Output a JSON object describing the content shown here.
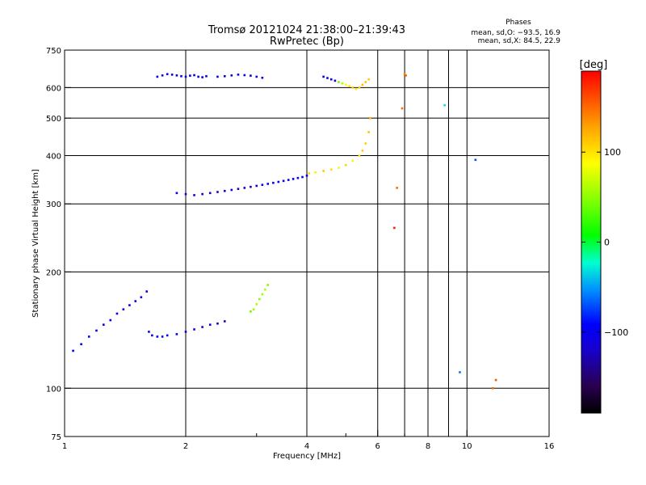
{
  "header": {
    "title_line1": "Tromsø 20121024 21:38:00–21:39:43",
    "title_line2": "RwPretec (Bp)"
  },
  "stats": {
    "heading": "Phases",
    "line_o": "mean, sd,O: −93.5, 16.9",
    "line_x": "mean, sd,X: 84.5, 22.9"
  },
  "colorbar": {
    "label": "[deg]",
    "range": [
      -190,
      190
    ],
    "ticks": [
      100,
      0,
      -100
    ],
    "tick_labels": [
      "100",
      "0",
      "−100"
    ]
  },
  "chart_data": {
    "type": "scatter",
    "title": "Tromsø 20121024 21:38:00–21:39:43",
    "subtitle": "RwPretec (Bp)",
    "xlabel": "Frequency [MHz]",
    "ylabel": "Stationary phase Virtual Height [km]",
    "xscale": "log",
    "yscale": "log",
    "xlim": [
      1,
      16
    ],
    "ylim": [
      75,
      750
    ],
    "x_ticks": [
      1,
      2,
      4,
      6,
      8,
      10,
      16
    ],
    "x_tick_labels": [
      "1",
      "2",
      "4",
      "6",
      "8",
      "10",
      "16"
    ],
    "x_minor_ticks": [
      3,
      5,
      7,
      9
    ],
    "x_grid": [
      2,
      4,
      6,
      7,
      8,
      9,
      10
    ],
    "y_ticks": [
      75,
      100,
      200,
      300,
      400,
      500,
      600,
      750
    ],
    "y_tick_labels": [
      "75",
      "100",
      "200",
      "300",
      "400",
      "500",
      "600",
      "750"
    ],
    "y_grid": [
      100,
      200,
      300,
      400,
      500,
      600
    ],
    "color_encoding": "phase [deg]",
    "series": [
      {
        "freq": [
          1.62,
          1.65,
          1.7,
          1.75,
          1.8,
          1.9,
          2.0,
          2.1,
          2.2,
          2.3,
          2.4,
          2.5
        ],
        "height": [
          140,
          137,
          136,
          136,
          137,
          138,
          140,
          142,
          144,
          146,
          147,
          149
        ],
        "phase": [
          -100,
          -105,
          -95,
          -110,
          -100,
          -98,
          -105,
          -112,
          -115,
          -110,
          -105,
          -108
        ]
      },
      {
        "freq": [
          1.05,
          1.1,
          1.15,
          1.2,
          1.25,
          1.3,
          1.35,
          1.4,
          1.45,
          1.5,
          1.55,
          1.6
        ],
        "height": [
          125,
          130,
          136,
          141,
          146,
          150,
          156,
          160,
          164,
          168,
          172,
          178
        ],
        "phase": [
          -95,
          -100,
          -92,
          -98,
          -105,
          -95,
          -100,
          -108,
          -96,
          -102,
          -104,
          -100
        ]
      },
      {
        "freq": [
          1.9,
          2.0,
          2.1,
          2.2,
          2.3,
          2.4,
          2.5,
          2.6,
          2.7,
          2.8,
          2.9,
          3.0,
          3.1,
          3.2,
          3.3,
          3.4,
          3.5,
          3.6,
          3.7,
          3.8,
          3.9,
          4.0
        ],
        "height": [
          320,
          318,
          316,
          318,
          320,
          322,
          324,
          326,
          328,
          330,
          332,
          334,
          336,
          338,
          340,
          342,
          344,
          346,
          348,
          350,
          352,
          355
        ],
        "phase": [
          -95,
          -105,
          -115,
          -120,
          -125,
          -118,
          -110,
          -112,
          -120,
          -115,
          -118,
          -110,
          -108,
          -104,
          -100,
          -95,
          -92,
          -98,
          -100,
          -104,
          -96,
          -98
        ]
      },
      {
        "freq": [
          4.05,
          4.2,
          4.4,
          4.6,
          4.8,
          5.0,
          5.2,
          5.4,
          5.5,
          5.6,
          5.7,
          5.75
        ],
        "height": [
          360,
          362,
          365,
          368,
          372,
          378,
          388,
          400,
          412,
          430,
          460,
          500
        ],
        "phase": [
          105,
          95,
          110,
          100,
          90,
          105,
          95,
          100,
          110,
          108,
          115,
          120
        ]
      },
      {
        "freq": [
          2.9,
          2.95,
          3.0,
          3.05,
          3.1,
          3.15,
          3.2
        ],
        "height": [
          158,
          160,
          165,
          170,
          175,
          180,
          185
        ],
        "phase": [
          40,
          55,
          60,
          48,
          52,
          62,
          45
        ]
      },
      {
        "freq": [
          1.7,
          1.75,
          1.8,
          1.85,
          1.9,
          1.95,
          2.0,
          2.05,
          2.1,
          2.15,
          2.2,
          2.25
        ],
        "height": [
          640,
          645,
          650,
          648,
          645,
          642,
          640,
          644,
          646,
          640,
          638,
          642
        ],
        "phase": [
          -105,
          -110,
          -100,
          -115,
          -108,
          -112,
          -104,
          -100,
          -110,
          -106,
          -108,
          -102
        ]
      },
      {
        "freq": [
          2.4,
          2.5,
          2.6,
          2.7,
          2.8,
          2.9,
          3.0,
          3.1
        ],
        "height": [
          640,
          642,
          645,
          648,
          646,
          644,
          640,
          636
        ],
        "phase": [
          -100,
          -104,
          -110,
          -98,
          -106,
          -112,
          -100,
          -96
        ]
      },
      {
        "freq": [
          4.4,
          4.5,
          4.6,
          4.7,
          4.8,
          4.9,
          5.0,
          5.1,
          5.2,
          5.3,
          5.4,
          5.5,
          5.6,
          5.7
        ],
        "height": [
          640,
          635,
          630,
          625,
          620,
          615,
          610,
          605,
          600,
          595,
          600,
          610,
          620,
          630
        ],
        "phase": [
          -100,
          -95,
          -90,
          -105,
          40,
          60,
          90,
          100,
          110,
          95,
          105,
          120,
          115,
          110
        ]
      },
      {
        "freq": [
          7.0,
          7.05,
          11.8,
          11.6,
          10.5,
          9.6,
          8.8,
          6.9,
          6.7,
          6.6
        ],
        "height": [
          650,
          645,
          105,
          100,
          390,
          110,
          540,
          530,
          330,
          260
        ],
        "phase": [
          140,
          150,
          160,
          150,
          -70,
          -60,
          -30,
          150,
          150,
          180
        ]
      }
    ]
  }
}
